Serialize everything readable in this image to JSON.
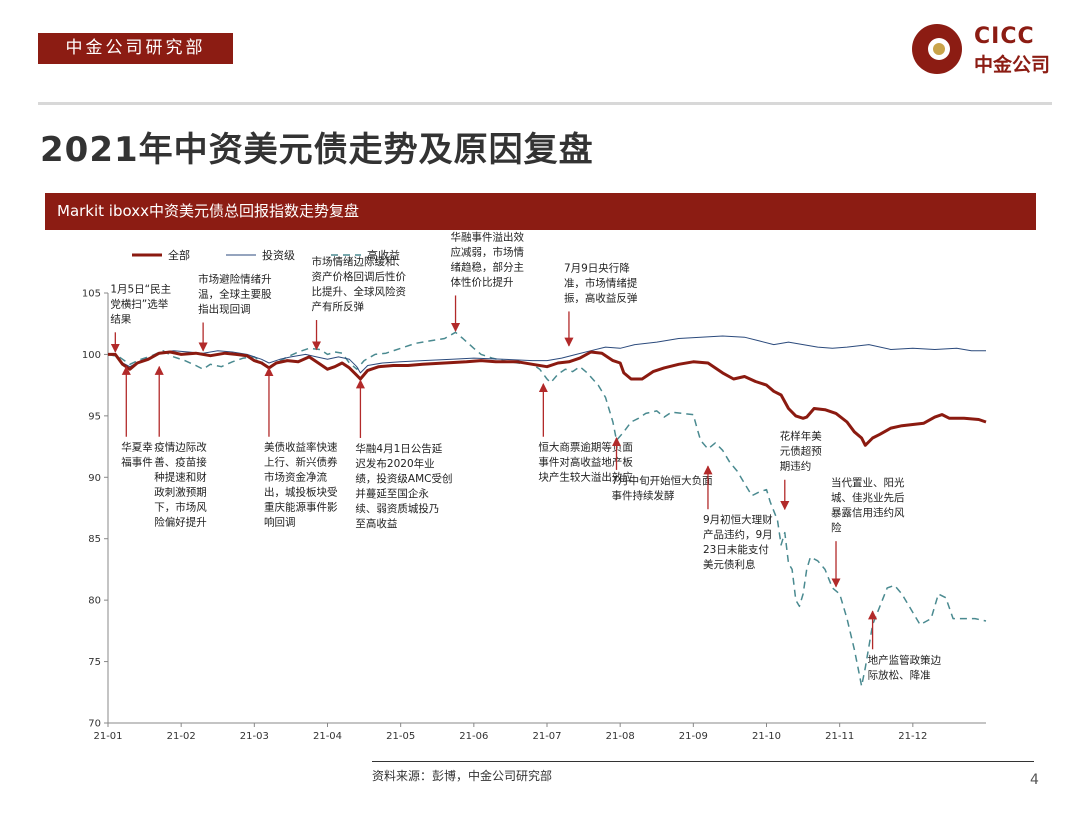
{
  "header": {
    "dept_tag": "中金公司研究部",
    "logo_en": "CICC",
    "logo_cn": "中金公司",
    "title": "2021年中资美元债走势及原因复盘"
  },
  "banner": {
    "text": "Markit iboxx中资美元债总回报指数走势复盘"
  },
  "footer": {
    "source": "资料来源：彭博，中金公司研究部",
    "page": "4"
  },
  "colors": {
    "brand": "#8c1c13",
    "total": "#8b1a10",
    "ig": "#2b4a7c",
    "hy": "#4a8a90",
    "arrow": "#b22a2a"
  },
  "chart_data": {
    "type": "line",
    "title": "",
    "xlabel": "",
    "ylabel": "",
    "ylim": [
      70,
      105
    ],
    "yticks": [
      70,
      75,
      80,
      85,
      90,
      95,
      100,
      105
    ],
    "xlim": [
      0,
      12
    ],
    "xticks": [
      {
        "x": 0,
        "label": "21-01"
      },
      {
        "x": 1,
        "label": "21-02"
      },
      {
        "x": 2,
        "label": "21-03"
      },
      {
        "x": 3,
        "label": "21-04"
      },
      {
        "x": 4,
        "label": "21-05"
      },
      {
        "x": 5,
        "label": "21-06"
      },
      {
        "x": 6,
        "label": "21-07"
      },
      {
        "x": 7,
        "label": "21-08"
      },
      {
        "x": 8,
        "label": "21-09"
      },
      {
        "x": 9,
        "label": "21-10"
      },
      {
        "x": 10,
        "label": "21-11"
      },
      {
        "x": 11,
        "label": "21-12"
      }
    ],
    "grid": false,
    "legend_position": "top-left",
    "series": [
      {
        "name": "全部",
        "color": "#8b1a10",
        "width": 3,
        "dash": "",
        "points": [
          [
            0,
            100
          ],
          [
            0.1,
            100
          ],
          [
            0.2,
            99.2
          ],
          [
            0.3,
            98.8
          ],
          [
            0.4,
            99.3
          ],
          [
            0.55,
            99.6
          ],
          [
            0.7,
            100.1
          ],
          [
            0.85,
            100.2
          ],
          [
            1,
            100
          ],
          [
            1.2,
            100.1
          ],
          [
            1.4,
            99.9
          ],
          [
            1.6,
            100.1
          ],
          [
            1.75,
            100
          ],
          [
            1.9,
            99.9
          ],
          [
            2.0,
            99.5
          ],
          [
            2.1,
            99.3
          ],
          [
            2.2,
            98.9
          ],
          [
            2.3,
            99.3
          ],
          [
            2.45,
            99.5
          ],
          [
            2.6,
            99.4
          ],
          [
            2.75,
            99.8
          ],
          [
            2.9,
            99.2
          ],
          [
            3.0,
            98.8
          ],
          [
            3.1,
            99.0
          ],
          [
            3.2,
            99.3
          ],
          [
            3.3,
            98.9
          ],
          [
            3.4,
            98.3
          ],
          [
            3.45,
            98.0
          ],
          [
            3.55,
            98.7
          ],
          [
            3.7,
            99.0
          ],
          [
            3.9,
            99.1
          ],
          [
            4.1,
            99.1
          ],
          [
            4.3,
            99.2
          ],
          [
            4.6,
            99.3
          ],
          [
            4.9,
            99.4
          ],
          [
            5.1,
            99.5
          ],
          [
            5.3,
            99.4
          ],
          [
            5.6,
            99.4
          ],
          [
            5.8,
            99.2
          ],
          [
            6.0,
            99.0
          ],
          [
            6.15,
            99.3
          ],
          [
            6.3,
            99.4
          ],
          [
            6.45,
            99.7
          ],
          [
            6.6,
            100.2
          ],
          [
            6.75,
            100.1
          ],
          [
            6.9,
            99.5
          ],
          [
            7.0,
            99.3
          ],
          [
            7.05,
            98.5
          ],
          [
            7.15,
            98.0
          ],
          [
            7.3,
            98.0
          ],
          [
            7.45,
            98.6
          ],
          [
            7.6,
            98.9
          ],
          [
            7.8,
            99.2
          ],
          [
            8.0,
            99.4
          ],
          [
            8.2,
            99.3
          ],
          [
            8.4,
            98.5
          ],
          [
            8.55,
            98.0
          ],
          [
            8.7,
            98.2
          ],
          [
            8.85,
            97.8
          ],
          [
            9.0,
            97.5
          ],
          [
            9.1,
            97.0
          ],
          [
            9.2,
            96.7
          ],
          [
            9.3,
            95.6
          ],
          [
            9.4,
            95.0
          ],
          [
            9.5,
            94.8
          ],
          [
            9.55,
            94.9
          ],
          [
            9.65,
            95.6
          ],
          [
            9.8,
            95.5
          ],
          [
            9.95,
            95.2
          ],
          [
            10.1,
            94.5
          ],
          [
            10.2,
            93.7
          ],
          [
            10.3,
            93.2
          ],
          [
            10.35,
            92.6
          ],
          [
            10.45,
            93.2
          ],
          [
            10.55,
            93.5
          ],
          [
            10.7,
            94.0
          ],
          [
            10.85,
            94.2
          ],
          [
            11.0,
            94.3
          ],
          [
            11.15,
            94.4
          ],
          [
            11.3,
            94.9
          ],
          [
            11.4,
            95.1
          ],
          [
            11.5,
            94.8
          ],
          [
            11.7,
            94.8
          ],
          [
            11.9,
            94.7
          ],
          [
            12,
            94.5
          ]
        ]
      },
      {
        "name": "投资级",
        "color": "#2b4a7c",
        "width": 1,
        "dash": "",
        "points": [
          [
            0,
            100
          ],
          [
            0.1,
            100
          ],
          [
            0.2,
            99.3
          ],
          [
            0.3,
            99
          ],
          [
            0.45,
            99.5
          ],
          [
            0.6,
            99.8
          ],
          [
            0.75,
            100.2
          ],
          [
            0.9,
            100.3
          ],
          [
            1.1,
            100.2
          ],
          [
            1.3,
            100.1
          ],
          [
            1.5,
            100.3
          ],
          [
            1.7,
            100.2
          ],
          [
            1.9,
            100
          ],
          [
            2.1,
            99.6
          ],
          [
            2.2,
            99.3
          ],
          [
            2.35,
            99.6
          ],
          [
            2.5,
            99.8
          ],
          [
            2.7,
            100
          ],
          [
            2.85,
            99.8
          ],
          [
            3.0,
            99.6
          ],
          [
            3.15,
            99.8
          ],
          [
            3.3,
            99.6
          ],
          [
            3.4,
            99
          ],
          [
            3.45,
            98.5
          ],
          [
            3.55,
            99.1
          ],
          [
            3.75,
            99.3
          ],
          [
            4.0,
            99.4
          ],
          [
            4.3,
            99.5
          ],
          [
            4.7,
            99.6
          ],
          [
            5.0,
            99.7
          ],
          [
            5.4,
            99.6
          ],
          [
            5.8,
            99.5
          ],
          [
            6.0,
            99.5
          ],
          [
            6.2,
            99.7
          ],
          [
            6.4,
            100.0
          ],
          [
            6.6,
            100.3
          ],
          [
            6.8,
            100.6
          ],
          [
            7.0,
            100.5
          ],
          [
            7.2,
            100.8
          ],
          [
            7.5,
            101.0
          ],
          [
            7.8,
            101.3
          ],
          [
            8.1,
            101.4
          ],
          [
            8.4,
            101.5
          ],
          [
            8.7,
            101.4
          ],
          [
            8.9,
            101.1
          ],
          [
            9.1,
            100.8
          ],
          [
            9.3,
            101.0
          ],
          [
            9.5,
            100.8
          ],
          [
            9.7,
            100.6
          ],
          [
            9.9,
            100.5
          ],
          [
            10.1,
            100.6
          ],
          [
            10.4,
            100.8
          ],
          [
            10.7,
            100.4
          ],
          [
            11.0,
            100.5
          ],
          [
            11.3,
            100.4
          ],
          [
            11.6,
            100.5
          ],
          [
            11.8,
            100.3
          ],
          [
            12,
            100.3
          ]
        ]
      },
      {
        "name": "高收益",
        "color": "#4a8a90",
        "width": 1.5,
        "dash": "7,5",
        "points": [
          [
            0,
            100
          ],
          [
            0.15,
            99.8
          ],
          [
            0.3,
            99.2
          ],
          [
            0.45,
            99.6
          ],
          [
            0.6,
            99.9
          ],
          [
            0.75,
            100.3
          ],
          [
            0.9,
            99.8
          ],
          [
            1.05,
            99.5
          ],
          [
            1.2,
            99.1
          ],
          [
            1.3,
            98.8
          ],
          [
            1.4,
            99.2
          ],
          [
            1.55,
            99.0
          ],
          [
            1.7,
            99.4
          ],
          [
            1.85,
            99.7
          ],
          [
            2.0,
            99.8
          ],
          [
            2.1,
            99.4
          ],
          [
            2.2,
            98.8
          ],
          [
            2.3,
            99.3
          ],
          [
            2.45,
            99.8
          ],
          [
            2.6,
            100.2
          ],
          [
            2.75,
            100.5
          ],
          [
            2.9,
            100.4
          ],
          [
            3.0,
            100.0
          ],
          [
            3.1,
            100.2
          ],
          [
            3.2,
            100.1
          ],
          [
            3.3,
            99.3
          ],
          [
            3.4,
            98.8
          ],
          [
            3.5,
            99.5
          ],
          [
            3.65,
            100.0
          ],
          [
            3.8,
            100.1
          ],
          [
            4.0,
            100.5
          ],
          [
            4.2,
            100.9
          ],
          [
            4.4,
            101.1
          ],
          [
            4.6,
            101.3
          ],
          [
            4.75,
            101.8
          ],
          [
            4.85,
            101.3
          ],
          [
            5.0,
            100.5
          ],
          [
            5.1,
            100.0
          ],
          [
            5.25,
            99.7
          ],
          [
            5.4,
            99.5
          ],
          [
            5.6,
            99.3
          ],
          [
            5.8,
            99.2
          ],
          [
            5.9,
            98.8
          ],
          [
            6.0,
            98.0
          ],
          [
            6.05,
            97.7
          ],
          [
            6.15,
            98.4
          ],
          [
            6.25,
            98.8
          ],
          [
            6.35,
            98.6
          ],
          [
            6.45,
            99.0
          ],
          [
            6.55,
            98.5
          ],
          [
            6.7,
            97.5
          ],
          [
            6.8,
            96.5
          ],
          [
            6.9,
            94.5
          ],
          [
            6.95,
            93.0
          ],
          [
            7.05,
            93.7
          ],
          [
            7.15,
            94.5
          ],
          [
            7.25,
            94.8
          ],
          [
            7.35,
            95.2
          ],
          [
            7.5,
            95.4
          ],
          [
            7.6,
            94.9
          ],
          [
            7.7,
            95.3
          ],
          [
            7.85,
            95.2
          ],
          [
            8.0,
            95.1
          ],
          [
            8.05,
            94.0
          ],
          [
            8.1,
            93.0
          ],
          [
            8.2,
            92.3
          ],
          [
            8.3,
            92.8
          ],
          [
            8.4,
            92.2
          ],
          [
            8.5,
            91.2
          ],
          [
            8.6,
            90.5
          ],
          [
            8.7,
            89.5
          ],
          [
            8.8,
            88.5
          ],
          [
            8.9,
            88.8
          ],
          [
            9.0,
            89.0
          ],
          [
            9.05,
            88.0
          ],
          [
            9.15,
            86.5
          ],
          [
            9.2,
            84.5
          ],
          [
            9.25,
            85.5
          ],
          [
            9.3,
            83.0
          ],
          [
            9.35,
            82.5
          ],
          [
            9.4,
            80.0
          ],
          [
            9.45,
            79.5
          ],
          [
            9.5,
            80.5
          ],
          [
            9.55,
            82.5
          ],
          [
            9.6,
            83.5
          ],
          [
            9.7,
            83.2
          ],
          [
            9.8,
            82.5
          ],
          [
            9.9,
            81.0
          ],
          [
            10.0,
            80.5
          ],
          [
            10.1,
            78.5
          ],
          [
            10.2,
            76.0
          ],
          [
            10.25,
            74.5
          ],
          [
            10.3,
            73.0
          ],
          [
            10.35,
            74.5
          ],
          [
            10.45,
            78.0
          ],
          [
            10.55,
            79.5
          ],
          [
            10.65,
            81.0
          ],
          [
            10.75,
            81.2
          ],
          [
            10.85,
            80.5
          ],
          [
            11.0,
            79.0
          ],
          [
            11.1,
            78.0
          ],
          [
            11.25,
            78.5
          ],
          [
            11.35,
            80.5
          ],
          [
            11.45,
            80.2
          ],
          [
            11.55,
            78.5
          ],
          [
            11.7,
            78.5
          ],
          [
            11.85,
            78.5
          ],
          [
            12,
            78.3
          ]
        ]
      }
    ],
    "annotations": [
      {
        "text": "1月5日“民主\n党横扫”选举\n结果",
        "ax": 0.1,
        "ay": 101.8,
        "ty": 100.2
      },
      {
        "text": "华夏幸\n福事件",
        "ax": 0.25,
        "ay": 93.3,
        "ty": 99.0
      },
      {
        "text": "疫情边际改\n善、疫苗接\n种提速和财\n政刺激预期\n下，市场风\n险偏好提升",
        "ax": 0.7,
        "ay": 93.3,
        "ty": 99.0
      },
      {
        "text": "市场避险情绪升\n温，全球主要股\n指出现回调",
        "ax": 1.3,
        "ay": 102.6,
        "ty": 100.3
      },
      {
        "text": "美债收益率快速\n上行、新兴债券\n市场资金净流\n出，城投板块受\n重庆能源事件影\n响回调",
        "ax": 2.2,
        "ay": 93.3,
        "ty": 98.9
      },
      {
        "text": "市场情绪边际缓和、\n资产价格回调后性价\n比提升、全球风险资\n产有所反弹",
        "ax": 2.85,
        "ay": 102.8,
        "ty": 100.4
      },
      {
        "text": "华融4月1日公告延\n迟发布2020年业\n绩，投资级AMC受创\n并蔓延至国企永\n续、弱资质城投乃\n至高收益",
        "ax": 3.45,
        "ay": 93.2,
        "ty": 97.9
      },
      {
        "text": "华融事件溢出效\n应减弱，市场情\n绪趋稳，部分主\n体性价比提升",
        "ax": 4.75,
        "ay": 104.8,
        "ty": 101.9
      },
      {
        "text": "恒大商票逾期等负面\n事件对高收益地产板\n块产生较大溢出效应",
        "ax": 5.95,
        "ay": 93.3,
        "ty": 97.6
      },
      {
        "text": "7月9日央行降\n准，市场情绪提\n振，高收益反弹",
        "ax": 6.3,
        "ay": 103.5,
        "ty": 100.7
      },
      {
        "text": "7月中旬开始恒大负面\n事件持续发酵",
        "ax": 6.95,
        "ay": 90.6,
        "ty": 93.2
      },
      {
        "text": "9月初恒大理财\n产品违约，9月\n23日未能支付\n美元债利息",
        "ax": 8.2,
        "ay": 87.4,
        "ty": 90.9
      },
      {
        "text": "花样年美\n元债超预\n期违约",
        "ax": 9.25,
        "ay": 89.8,
        "ty": 87.4
      },
      {
        "text": "当代置业、阳光\n城、佳兆业先后\n暴露信用违约风\n险",
        "ax": 9.95,
        "ay": 84.8,
        "ty": 81.1
      },
      {
        "text": "地产监管政策边\n际放松、降准",
        "ax": 10.45,
        "ay": 76.0,
        "ty": 79.1
      }
    ]
  }
}
